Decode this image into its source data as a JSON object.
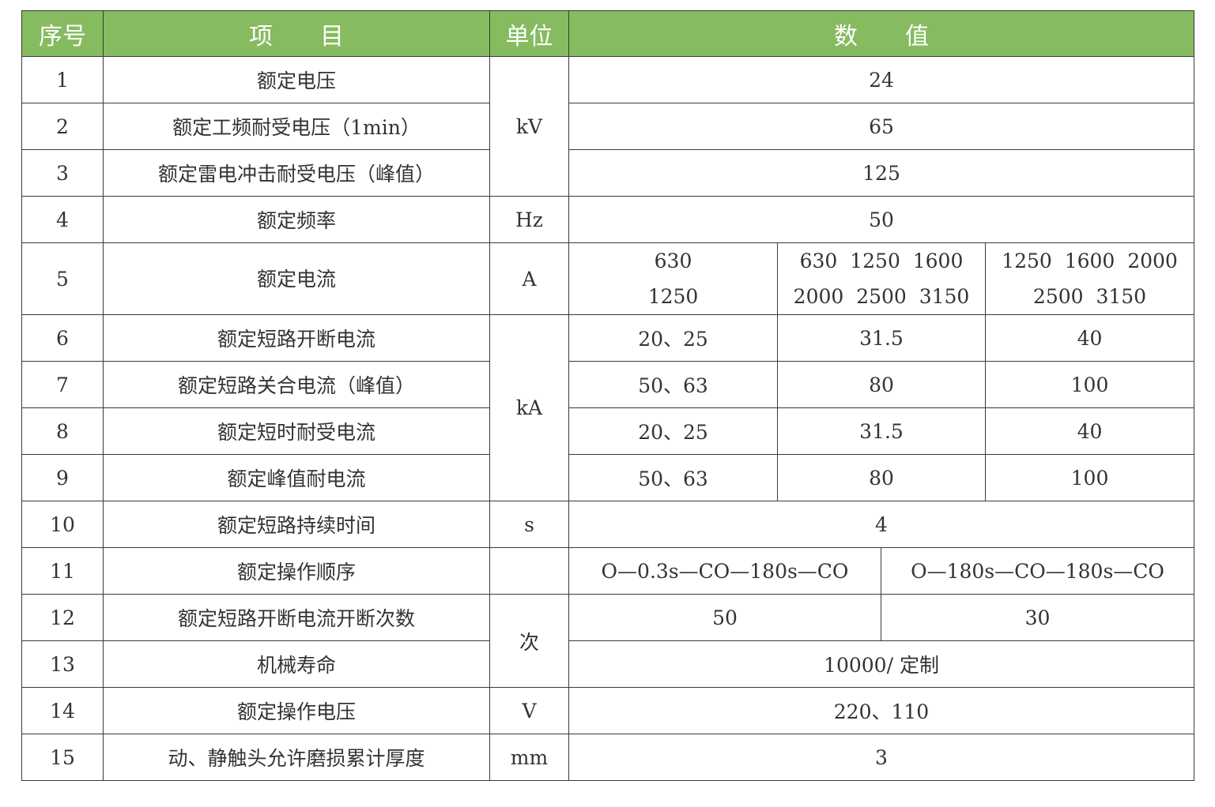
{
  "colors": {
    "header_bg": "#86bb60",
    "header_text": "#ffffff",
    "border": "#3a3a3a",
    "text": "#333333"
  },
  "header": {
    "no": "序号",
    "item": "项　　目",
    "unit": "单位",
    "value": "数　　值"
  },
  "rows": [
    {
      "no": "1",
      "item": "额定电压",
      "unit": "kV",
      "value": "24"
    },
    {
      "no": "2",
      "item": "额定工频耐受电压（1min）",
      "value": "65"
    },
    {
      "no": "3",
      "item": "额定雷电冲击耐受电压（峰值）",
      "value": "125"
    },
    {
      "no": "4",
      "item": "额定频率",
      "unit": "Hz",
      "value": "50"
    },
    {
      "no": "5",
      "item": "额定电流",
      "unit": "A",
      "values": [
        [
          "630",
          "1250"
        ],
        [
          "630  1250  1600",
          "2000  2500  3150"
        ],
        [
          "1250  1600  2000",
          "2500  3150"
        ]
      ]
    },
    {
      "no": "6",
      "item": "额定短路开断电流",
      "unit": "kA",
      "values": [
        "20、25",
        "31.5",
        "40"
      ]
    },
    {
      "no": "7",
      "item": "额定短路关合电流（峰值）",
      "values": [
        "50、63",
        "80",
        "100"
      ]
    },
    {
      "no": "8",
      "item": "额定短时耐受电流",
      "values": [
        "20、25",
        "31.5",
        "40"
      ]
    },
    {
      "no": "9",
      "item": "额定峰值耐电流",
      "values": [
        "50、63",
        "80",
        "100"
      ]
    },
    {
      "no": "10",
      "item": "额定短路持续时间",
      "unit": "s",
      "value": "4"
    },
    {
      "no": "11",
      "item": "额定操作顺序",
      "values": [
        "O—0.3s—CO—180s—CO",
        "O—180s—CO—180s—CO"
      ]
    },
    {
      "no": "12",
      "item": "额定短路开断电流开断次数",
      "unit": "次",
      "values": [
        "50",
        "30"
      ]
    },
    {
      "no": "13",
      "item": "机械寿命",
      "value": "10000/ 定制"
    },
    {
      "no": "14",
      "item": "额定操作电压",
      "unit": "V",
      "value": "220、110"
    },
    {
      "no": "15",
      "item": "动、静触头允许磨损累计厚度",
      "unit": "mm",
      "value": "3"
    }
  ]
}
